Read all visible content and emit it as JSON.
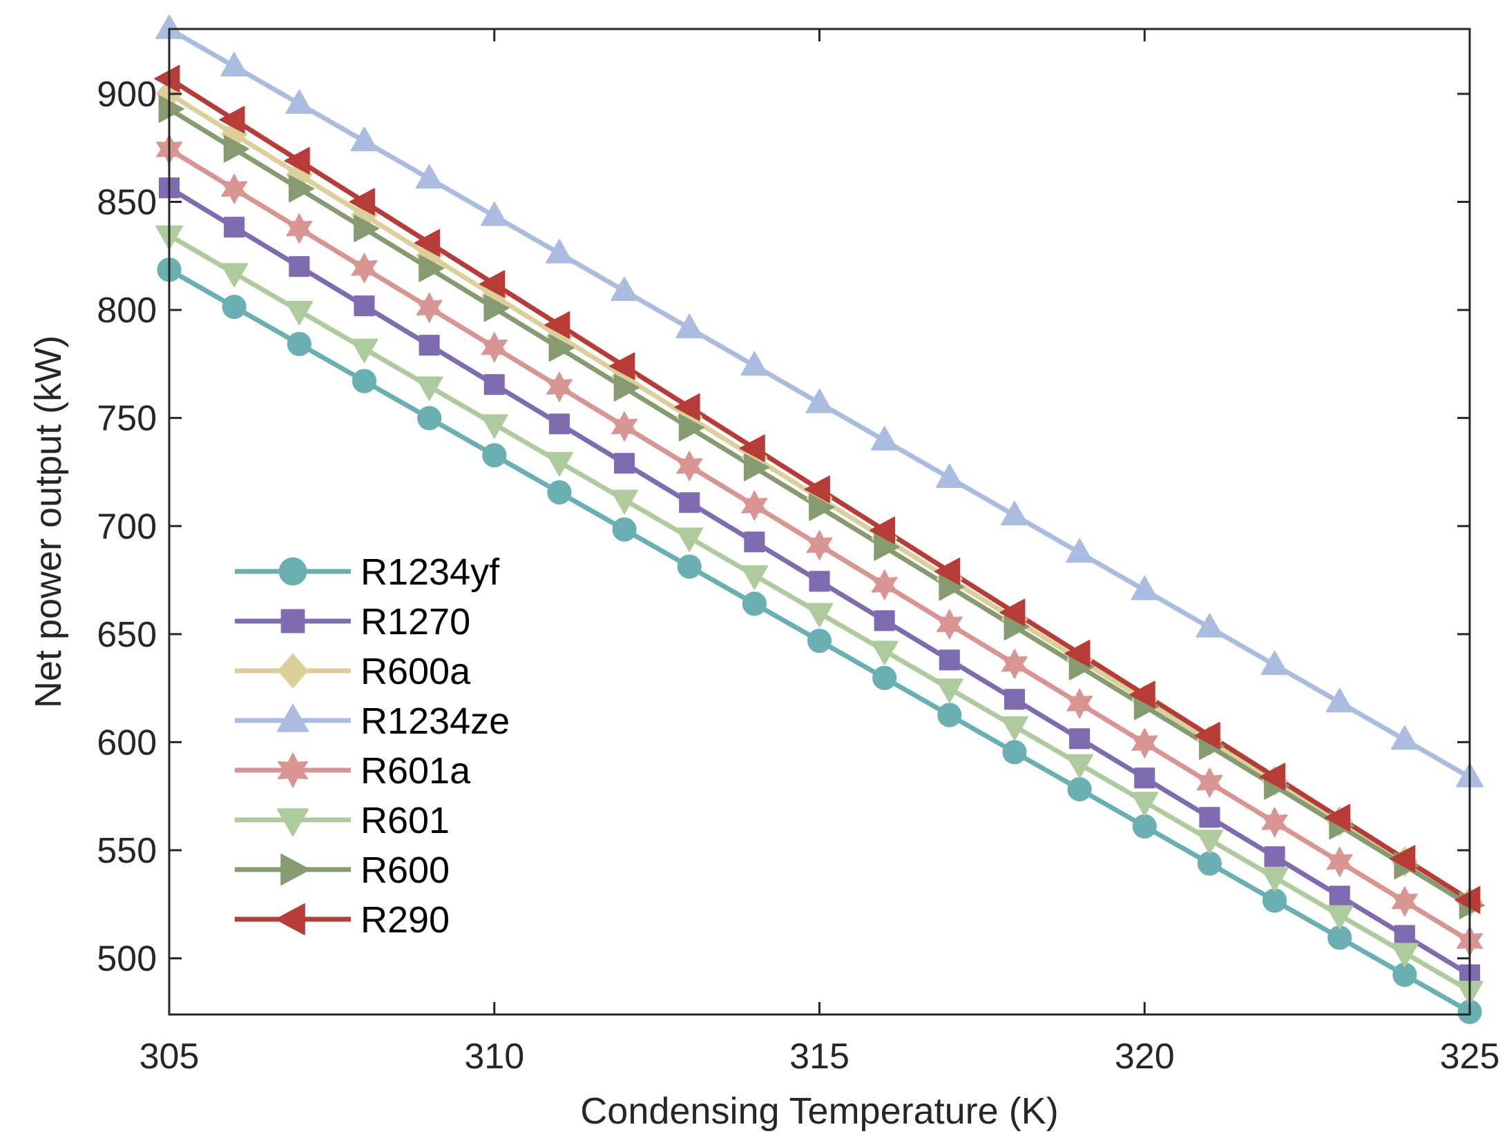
{
  "chart_data": {
    "type": "line",
    "title": "",
    "xlabel": "Condensing Temperature (K)",
    "ylabel": "Net power output (kW)",
    "xlim": [
      305,
      325
    ],
    "ylim": [
      474,
      930
    ],
    "xticks": [
      305,
      310,
      315,
      320,
      325
    ],
    "yticks": [
      500,
      550,
      600,
      650,
      700,
      750,
      800,
      850,
      900
    ],
    "grid": false,
    "legend_position": "bottom-left",
    "x": [
      305,
      306,
      307,
      308,
      309,
      310,
      311,
      312,
      313,
      314,
      315,
      316,
      317,
      318,
      319,
      320,
      321,
      322,
      323,
      324,
      325
    ],
    "series": [
      {
        "name": "R1234yf",
        "color": "#6aafb1",
        "marker": "circle",
        "start": 818.6,
        "end": 475.2
      },
      {
        "name": "R1270",
        "color": "#7f6bb0",
        "marker": "square",
        "start": 856.5,
        "end": 492.4
      },
      {
        "name": "R600a",
        "color": "#ddcf9a",
        "marker": "diamond",
        "start": 900.0,
        "end": 526.0
      },
      {
        "name": "R1234ze",
        "color": "#aabde0",
        "marker": "triangle-up",
        "start": 930.0,
        "end": 583.8
      },
      {
        "name": "R601a",
        "color": "#d99592",
        "marker": "hexagram",
        "start": 874.3,
        "end": 508.0
      },
      {
        "name": "R601",
        "color": "#aecb9d",
        "marker": "triangle-down",
        "start": 834.5,
        "end": 485.0
      },
      {
        "name": "R600",
        "color": "#869b6f",
        "marker": "triangle-right",
        "start": 893.0,
        "end": 524.5
      },
      {
        "name": "R290",
        "color": "#b73c38",
        "marker": "triangle-left",
        "start": 907.0,
        "end": 527.0
      }
    ]
  }
}
